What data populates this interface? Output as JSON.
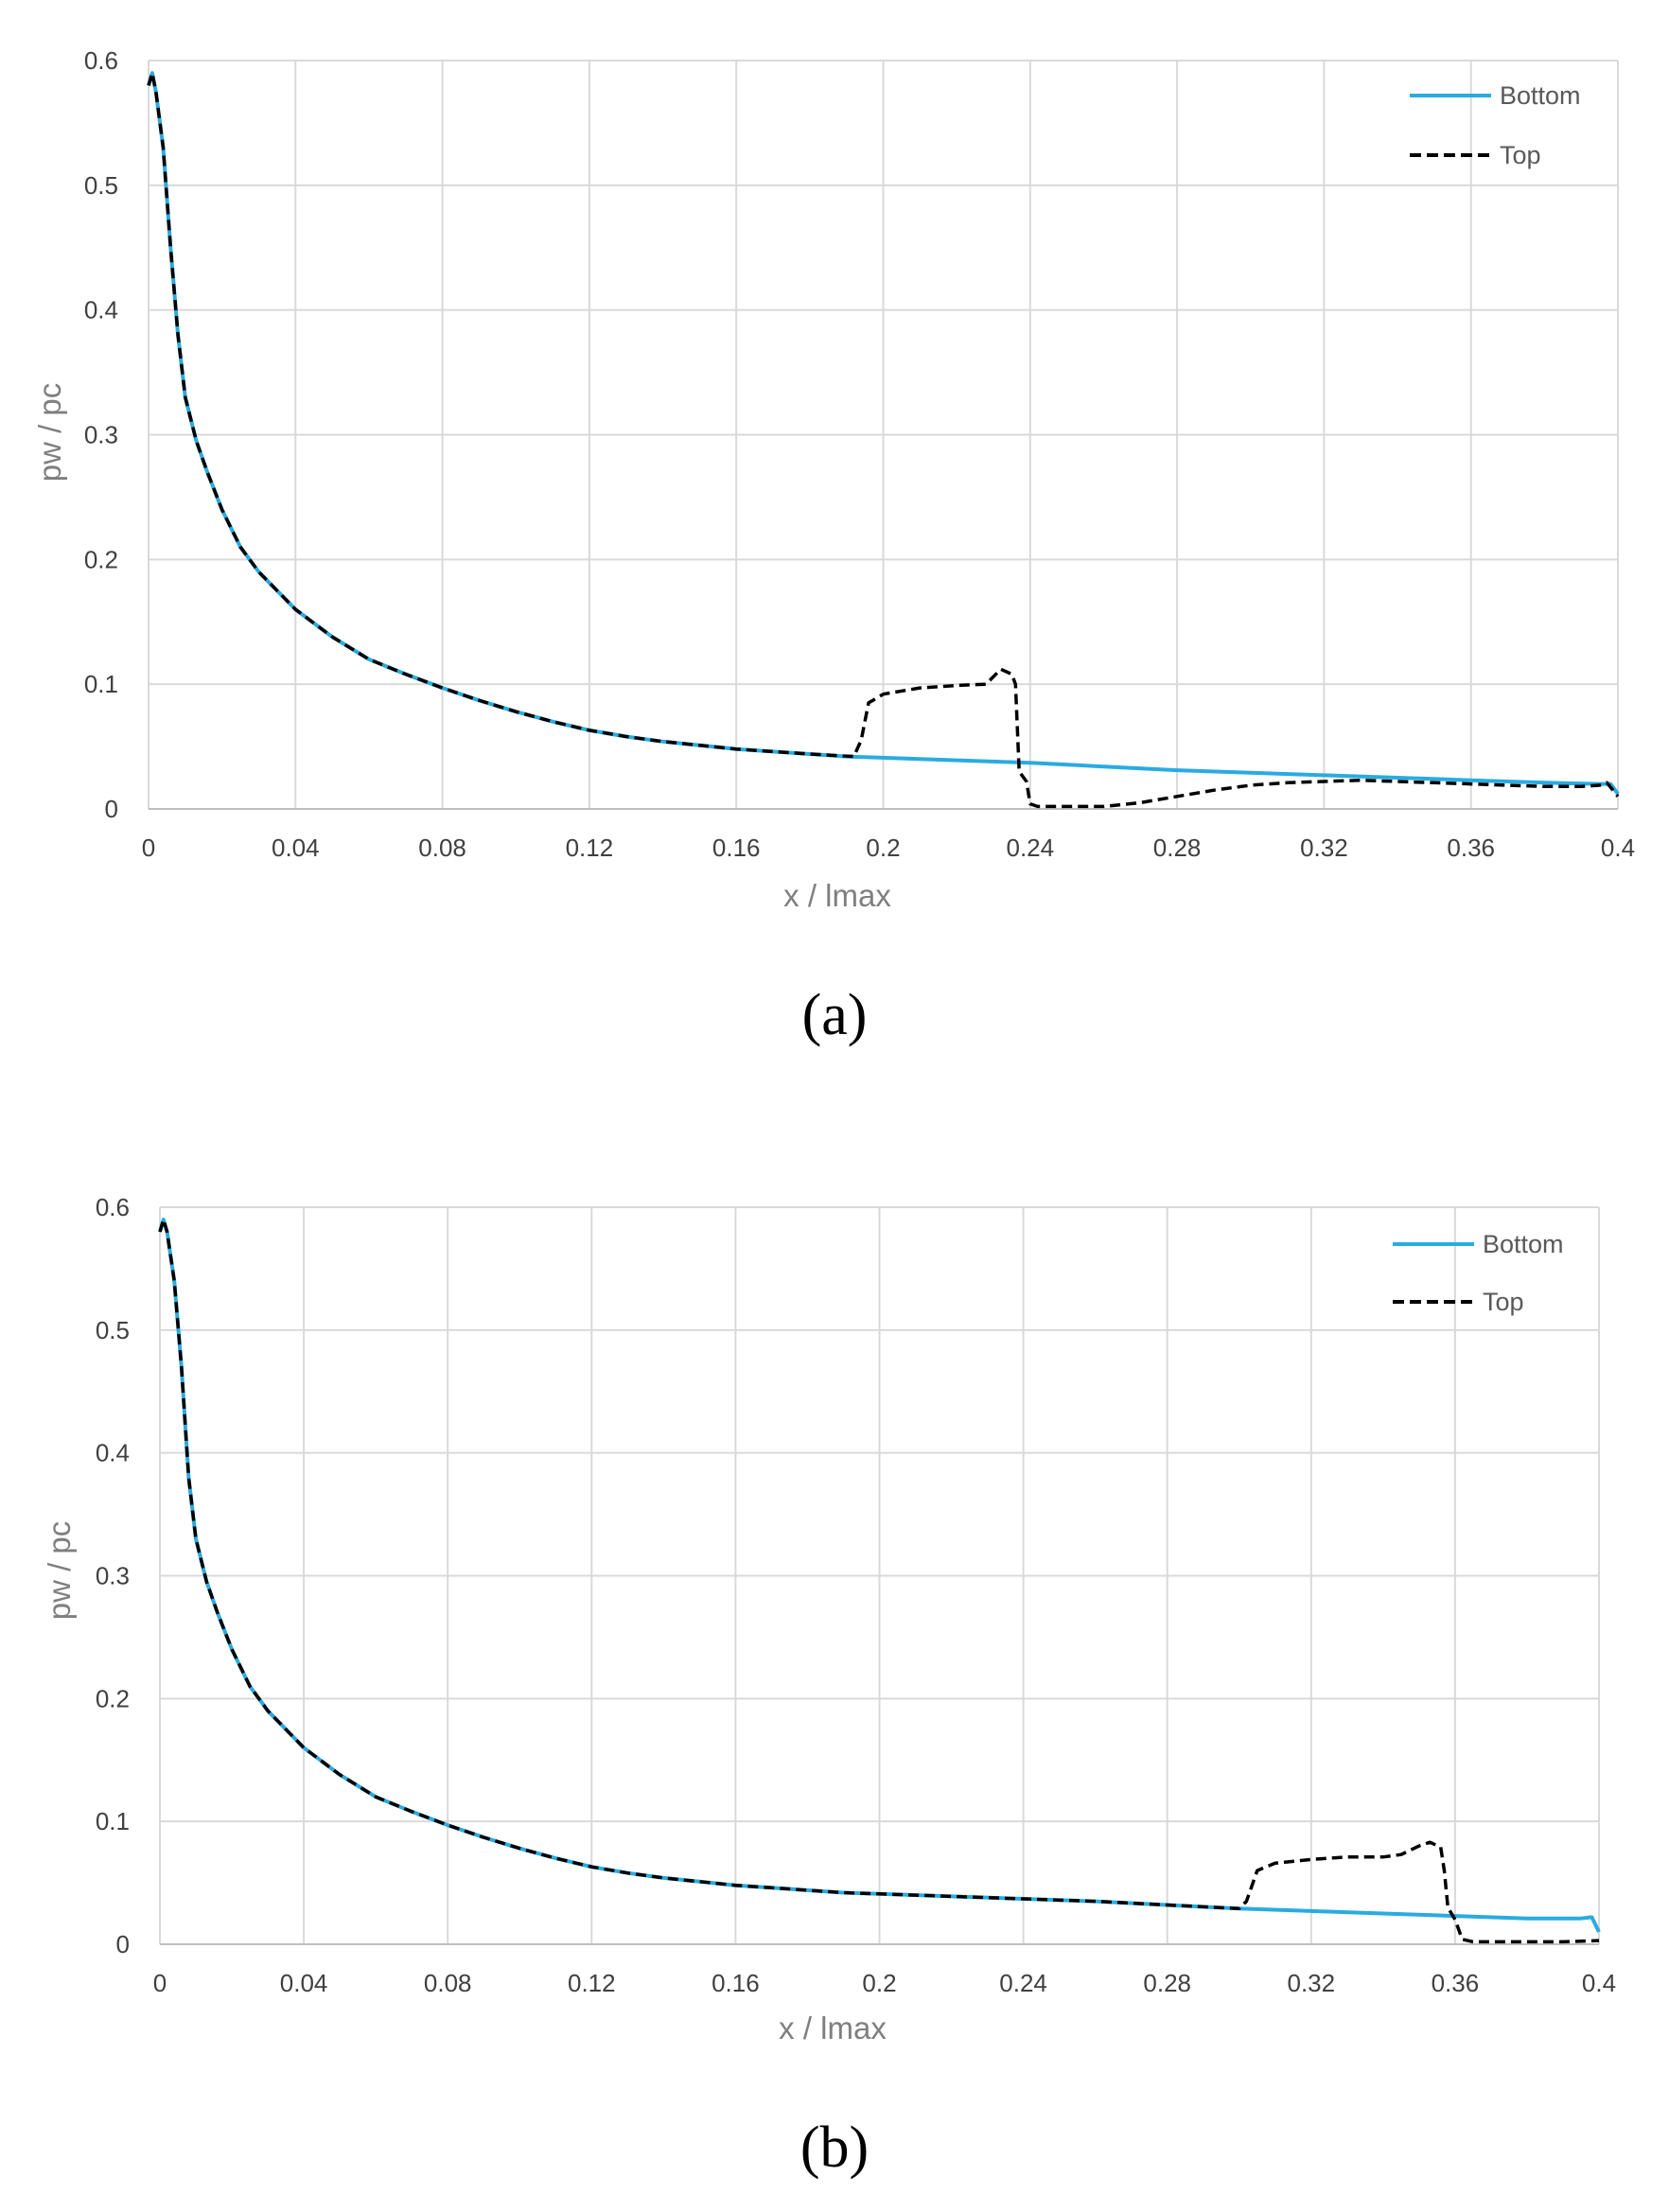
{
  "chart_data": [
    {
      "type": "line",
      "caption": "(a)",
      "xlabel": "x / lmax",
      "ylabel": "pw / pc",
      "xlim": [
        0,
        0.4
      ],
      "ylim": [
        0,
        0.6
      ],
      "xticks": [
        "0",
        "0.04",
        "0.08",
        "0.12",
        "0.16",
        "0.2",
        "0.24",
        "0.28",
        "0.32",
        "0.36",
        "0.4"
      ],
      "yticks": [
        "0",
        "0.1",
        "0.2",
        "0.3",
        "0.4",
        "0.5",
        "0.6"
      ],
      "legend_position": "top-right",
      "series": [
        {
          "name": "Bottom",
          "style": "solid",
          "color": "#29ABE2",
          "points": [
            [
              0,
              0.58
            ],
            [
              0.001,
              0.59
            ],
            [
              0.002,
              0.575
            ],
            [
              0.004,
              0.53
            ],
            [
              0.006,
              0.45
            ],
            [
              0.008,
              0.38
            ],
            [
              0.01,
              0.33
            ],
            [
              0.013,
              0.295
            ],
            [
              0.016,
              0.27
            ],
            [
              0.02,
              0.24
            ],
            [
              0.025,
              0.21
            ],
            [
              0.03,
              0.19
            ],
            [
              0.035,
              0.175
            ],
            [
              0.04,
              0.16
            ],
            [
              0.05,
              0.138
            ],
            [
              0.06,
              0.12
            ],
            [
              0.07,
              0.108
            ],
            [
              0.08,
              0.097
            ],
            [
              0.09,
              0.087
            ],
            [
              0.1,
              0.078
            ],
            [
              0.11,
              0.07
            ],
            [
              0.12,
              0.063
            ],
            [
              0.13,
              0.058
            ],
            [
              0.14,
              0.054
            ],
            [
              0.15,
              0.051
            ],
            [
              0.16,
              0.048
            ],
            [
              0.17,
              0.046
            ],
            [
              0.18,
              0.044
            ],
            [
              0.19,
              0.042
            ],
            [
              0.2,
              0.041
            ],
            [
              0.22,
              0.039
            ],
            [
              0.24,
              0.037
            ],
            [
              0.26,
              0.034
            ],
            [
              0.28,
              0.031
            ],
            [
              0.3,
              0.029
            ],
            [
              0.32,
              0.027
            ],
            [
              0.34,
              0.025
            ],
            [
              0.36,
              0.023
            ],
            [
              0.38,
              0.021
            ],
            [
              0.395,
              0.02
            ],
            [
              0.398,
              0.02
            ],
            [
              0.4,
              0.012
            ]
          ]
        },
        {
          "name": "Top",
          "style": "dashed",
          "color": "#000000",
          "points": [
            [
              0,
              0.58
            ],
            [
              0.001,
              0.59
            ],
            [
              0.002,
              0.575
            ],
            [
              0.004,
              0.53
            ],
            [
              0.006,
              0.45
            ],
            [
              0.008,
              0.38
            ],
            [
              0.01,
              0.33
            ],
            [
              0.013,
              0.295
            ],
            [
              0.016,
              0.27
            ],
            [
              0.02,
              0.24
            ],
            [
              0.025,
              0.21
            ],
            [
              0.03,
              0.19
            ],
            [
              0.035,
              0.175
            ],
            [
              0.04,
              0.16
            ],
            [
              0.05,
              0.138
            ],
            [
              0.06,
              0.12
            ],
            [
              0.07,
              0.108
            ],
            [
              0.08,
              0.097
            ],
            [
              0.09,
              0.087
            ],
            [
              0.1,
              0.078
            ],
            [
              0.11,
              0.07
            ],
            [
              0.12,
              0.063
            ],
            [
              0.13,
              0.058
            ],
            [
              0.14,
              0.054
            ],
            [
              0.15,
              0.051
            ],
            [
              0.16,
              0.048
            ],
            [
              0.17,
              0.046
            ],
            [
              0.18,
              0.044
            ],
            [
              0.192,
              0.042
            ],
            [
              0.194,
              0.055
            ],
            [
              0.196,
              0.085
            ],
            [
              0.2,
              0.092
            ],
            [
              0.21,
              0.097
            ],
            [
              0.22,
              0.099
            ],
            [
              0.228,
              0.1
            ],
            [
              0.232,
              0.112
            ],
            [
              0.235,
              0.108
            ],
            [
              0.236,
              0.1
            ],
            [
              0.237,
              0.03
            ],
            [
              0.239,
              0.022
            ],
            [
              0.24,
              0.004
            ],
            [
              0.242,
              0.002
            ],
            [
              0.26,
              0.002
            ],
            [
              0.27,
              0.005
            ],
            [
              0.28,
              0.01
            ],
            [
              0.29,
              0.015
            ],
            [
              0.3,
              0.019
            ],
            [
              0.31,
              0.021
            ],
            [
              0.32,
              0.022
            ],
            [
              0.33,
              0.023
            ],
            [
              0.34,
              0.022
            ],
            [
              0.35,
              0.021
            ],
            [
              0.36,
              0.02
            ],
            [
              0.37,
              0.019
            ],
            [
              0.38,
              0.018
            ],
            [
              0.39,
              0.018
            ],
            [
              0.395,
              0.019
            ],
            [
              0.397,
              0.021
            ],
            [
              0.4,
              0.01
            ]
          ]
        }
      ]
    },
    {
      "type": "line",
      "caption": "(b)",
      "xlabel": "x / lmax",
      "ylabel": "pw / pc",
      "xlim": [
        0,
        0.4
      ],
      "ylim": [
        0,
        0.6
      ],
      "xticks": [
        "0",
        "0.04",
        "0.08",
        "0.12",
        "0.16",
        "0.2",
        "0.24",
        "0.28",
        "0.32",
        "0.36",
        "0.4"
      ],
      "yticks": [
        "0",
        "0.1",
        "0.2",
        "0.3",
        "0.4",
        "0.5",
        "0.6"
      ],
      "legend_position": "top-right",
      "series": [
        {
          "name": "Bottom",
          "style": "solid",
          "color": "#29ABE2",
          "points": [
            [
              0,
              0.58
            ],
            [
              0.001,
              0.59
            ],
            [
              0.002,
              0.58
            ],
            [
              0.004,
              0.54
            ],
            [
              0.006,
              0.47
            ],
            [
              0.008,
              0.38
            ],
            [
              0.01,
              0.33
            ],
            [
              0.013,
              0.295
            ],
            [
              0.016,
              0.27
            ],
            [
              0.02,
              0.24
            ],
            [
              0.025,
              0.21
            ],
            [
              0.03,
              0.19
            ],
            [
              0.035,
              0.175
            ],
            [
              0.04,
              0.16
            ],
            [
              0.05,
              0.138
            ],
            [
              0.06,
              0.12
            ],
            [
              0.07,
              0.108
            ],
            [
              0.08,
              0.097
            ],
            [
              0.09,
              0.087
            ],
            [
              0.1,
              0.078
            ],
            [
              0.11,
              0.07
            ],
            [
              0.12,
              0.063
            ],
            [
              0.13,
              0.058
            ],
            [
              0.14,
              0.054
            ],
            [
              0.15,
              0.051
            ],
            [
              0.16,
              0.048
            ],
            [
              0.17,
              0.046
            ],
            [
              0.18,
              0.044
            ],
            [
              0.19,
              0.042
            ],
            [
              0.2,
              0.041
            ],
            [
              0.22,
              0.039
            ],
            [
              0.24,
              0.037
            ],
            [
              0.26,
              0.035
            ],
            [
              0.28,
              0.032
            ],
            [
              0.3,
              0.029
            ],
            [
              0.32,
              0.027
            ],
            [
              0.34,
              0.025
            ],
            [
              0.36,
              0.023
            ],
            [
              0.38,
              0.021
            ],
            [
              0.395,
              0.021
            ],
            [
              0.398,
              0.022
            ],
            [
              0.4,
              0.01
            ]
          ]
        },
        {
          "name": "Top",
          "style": "dashed",
          "color": "#000000",
          "points": [
            [
              0,
              0.58
            ],
            [
              0.001,
              0.59
            ],
            [
              0.002,
              0.58
            ],
            [
              0.004,
              0.54
            ],
            [
              0.006,
              0.47
            ],
            [
              0.008,
              0.38
            ],
            [
              0.01,
              0.33
            ],
            [
              0.013,
              0.295
            ],
            [
              0.016,
              0.27
            ],
            [
              0.02,
              0.24
            ],
            [
              0.025,
              0.21
            ],
            [
              0.03,
              0.19
            ],
            [
              0.035,
              0.175
            ],
            [
              0.04,
              0.16
            ],
            [
              0.05,
              0.138
            ],
            [
              0.06,
              0.12
            ],
            [
              0.07,
              0.108
            ],
            [
              0.08,
              0.097
            ],
            [
              0.09,
              0.087
            ],
            [
              0.1,
              0.078
            ],
            [
              0.11,
              0.07
            ],
            [
              0.12,
              0.063
            ],
            [
              0.13,
              0.058
            ],
            [
              0.14,
              0.054
            ],
            [
              0.15,
              0.051
            ],
            [
              0.16,
              0.048
            ],
            [
              0.17,
              0.046
            ],
            [
              0.18,
              0.044
            ],
            [
              0.19,
              0.042
            ],
            [
              0.2,
              0.041
            ],
            [
              0.22,
              0.039
            ],
            [
              0.24,
              0.037
            ],
            [
              0.26,
              0.035
            ],
            [
              0.28,
              0.032
            ],
            [
              0.3,
              0.029
            ],
            [
              0.302,
              0.035
            ],
            [
              0.305,
              0.06
            ],
            [
              0.31,
              0.066
            ],
            [
              0.32,
              0.069
            ],
            [
              0.33,
              0.071
            ],
            [
              0.34,
              0.071
            ],
            [
              0.345,
              0.073
            ],
            [
              0.35,
              0.08
            ],
            [
              0.353,
              0.083
            ],
            [
              0.356,
              0.079
            ],
            [
              0.357,
              0.06
            ],
            [
              0.358,
              0.03
            ],
            [
              0.36,
              0.02
            ],
            [
              0.362,
              0.004
            ],
            [
              0.365,
              0.002
            ],
            [
              0.38,
              0.002
            ],
            [
              0.39,
              0.002
            ],
            [
              0.4,
              0.003
            ]
          ]
        }
      ]
    }
  ]
}
